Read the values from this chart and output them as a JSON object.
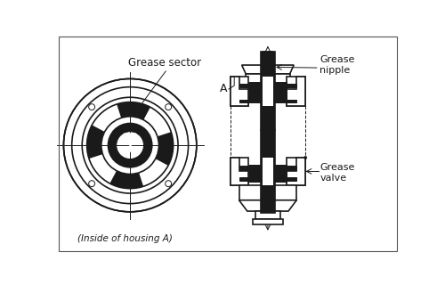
{
  "bg_color": "#ffffff",
  "line_color": "#1a1a1a",
  "dark_fill": "#1a1a1a",
  "white_fill": "#ffffff",
  "blue_fill": "#aed6e8",
  "text_color": "#1a1a1a",
  "label_grease_sector": "Grease sector",
  "label_grease_nipple": "Grease\nnipple",
  "label_grease_valve": "Grease\nvalve",
  "label_inside": "(Inside of housing A)",
  "label_A": "A",
  "fig_width": 5.0,
  "fig_height": 3.2,
  "dpi": 100
}
